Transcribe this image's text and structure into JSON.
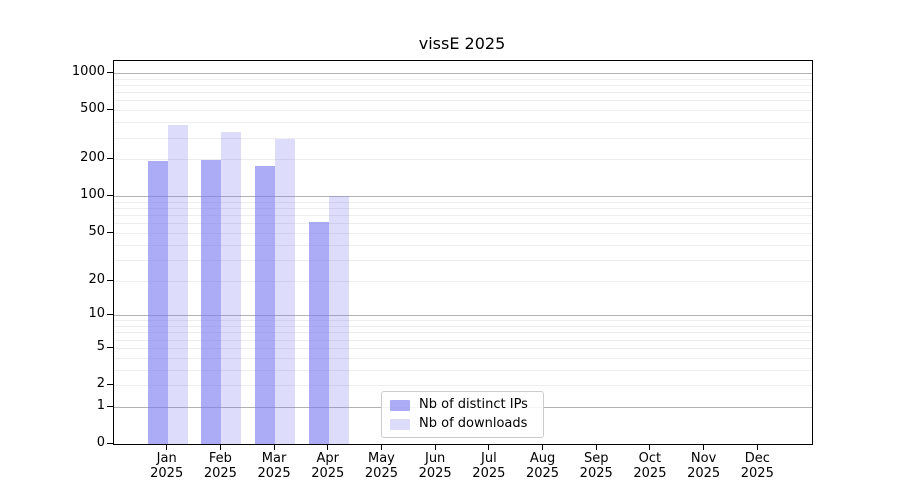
{
  "chart_data": {
    "type": "bar",
    "title": "vissE 2025",
    "x_year": "2025",
    "months": [
      "Jan",
      "Feb",
      "Mar",
      "Apr",
      "May",
      "Jun",
      "Jul",
      "Aug",
      "Sep",
      "Oct",
      "Nov",
      "Dec"
    ],
    "series": [
      {
        "name": "Nb of distinct IPs",
        "color": "rgba(120,120,240,0.62)",
        "values": [
          193,
          197,
          175,
          62,
          null,
          null,
          null,
          null,
          null,
          null,
          null,
          null
        ]
      },
      {
        "name": "Nb of downloads",
        "color": "rgba(120,120,240,0.25)",
        "values": [
          380,
          330,
          290,
          100,
          null,
          null,
          null,
          null,
          null,
          null,
          null,
          null
        ]
      }
    ],
    "yscale": "symlog-log1p",
    "yticks": [
      0,
      1,
      2,
      5,
      10,
      20,
      50,
      100,
      200,
      500,
      1000
    ],
    "ylim": [
      0,
      1250
    ],
    "grid": {
      "on": true,
      "major": [
        1,
        10,
        100,
        1000
      ],
      "minor": [
        2,
        3,
        4,
        5,
        6,
        7,
        8,
        9,
        20,
        30,
        40,
        50,
        60,
        70,
        80,
        90,
        200,
        300,
        400,
        500,
        600,
        700,
        800,
        900
      ]
    },
    "legend": {
      "position": "lower-center"
    },
    "colors": {
      "major_grid": "#b2b2b2",
      "minor_grid": "#ededed",
      "axis": "#000000",
      "legend_border": "#cccccc"
    }
  }
}
